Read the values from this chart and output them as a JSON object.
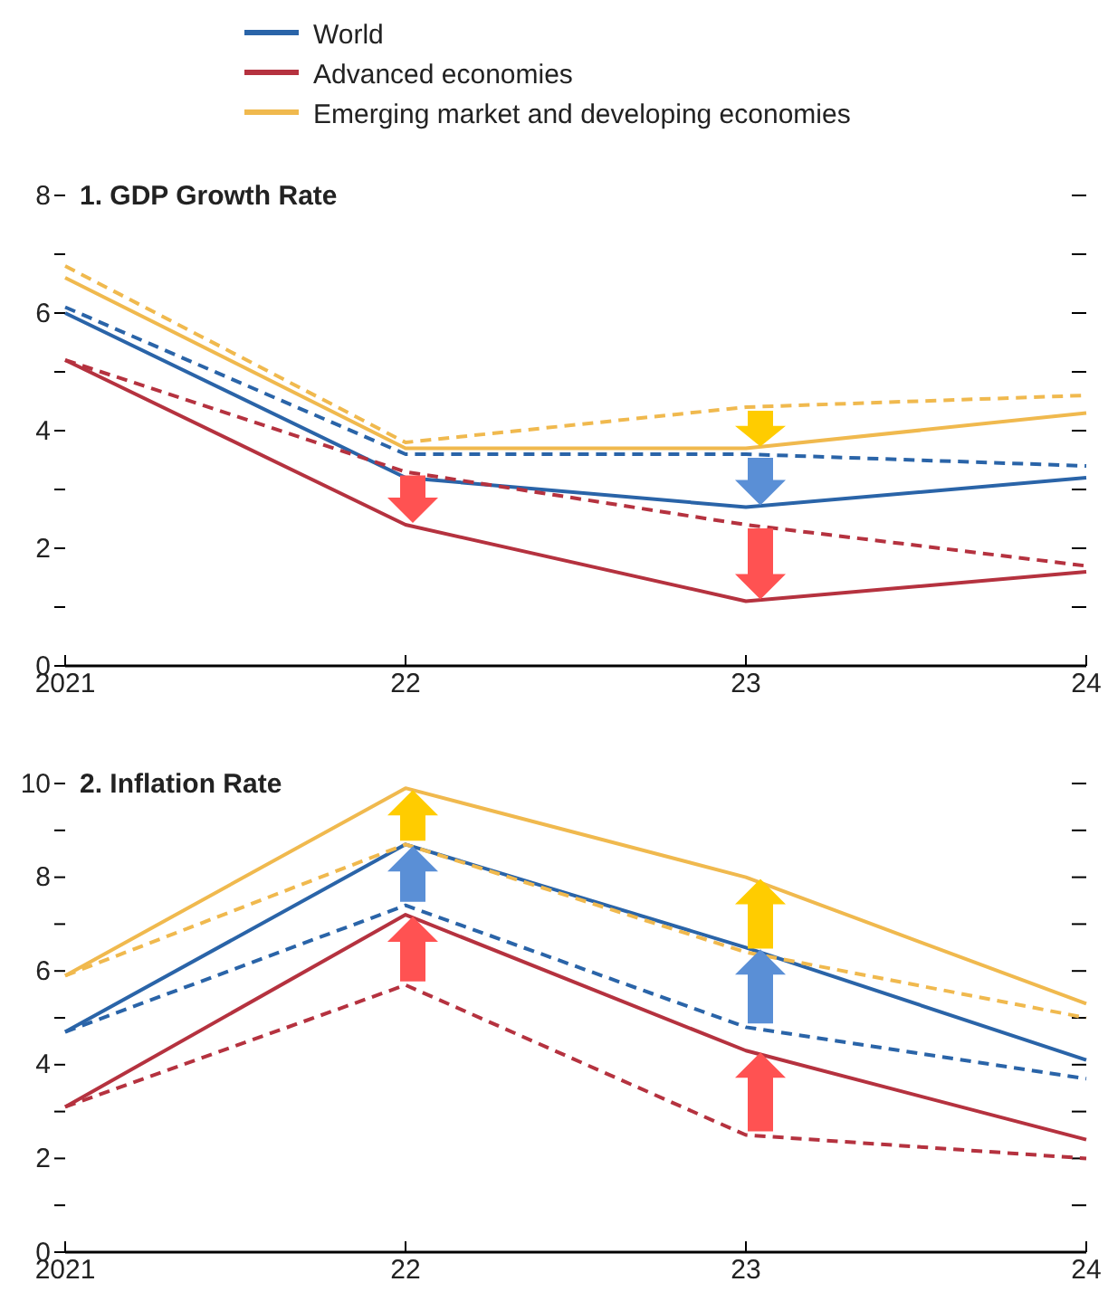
{
  "chart_data": [
    {
      "type": "line",
      "title": "1. GDP Growth Rate",
      "categories": [
        "2021",
        "22",
        "23",
        "24"
      ],
      "ylim": [
        0,
        8
      ],
      "yticks": [
        0,
        {
          "value": 1,
          "label": null
        },
        2,
        {
          "value": 3,
          "label": null
        },
        4,
        {
          "value": 5,
          "label": null
        },
        6,
        {
          "value": 7,
          "label": null
        },
        8
      ],
      "legend": "top",
      "grid": false,
      "series": [
        {
          "name": "World",
          "color": "#2a64a8",
          "line_style": "solid",
          "values": [
            6.0,
            3.2,
            2.7,
            3.2
          ]
        },
        {
          "name": "Advanced economies",
          "color": "#b5323f",
          "line_style": "solid",
          "values": [
            5.2,
            2.4,
            1.1,
            1.6
          ]
        },
        {
          "name": "Emerging market and developing economies",
          "color": "#f0b94e",
          "line_style": "solid",
          "values": [
            6.6,
            3.7,
            3.7,
            4.3
          ]
        },
        {
          "color": "#2a64a8",
          "line_style": "dashed",
          "values": [
            6.1,
            3.6,
            3.6,
            3.4
          ]
        },
        {
          "color": "#b5323f",
          "line_style": "dashed",
          "values": [
            5.2,
            3.3,
            2.4,
            1.7
          ]
        },
        {
          "color": "#f0b94e",
          "line_style": "dashed",
          "values": [
            6.8,
            3.8,
            4.4,
            4.6
          ]
        }
      ]
    },
    {
      "type": "line",
      "title": "2. Inflation Rate",
      "categories": [
        "2021",
        "22",
        "23",
        "24"
      ],
      "ylim": [
        0,
        10
      ],
      "yticks": [
        0,
        {
          "value": 1,
          "label": null
        },
        2,
        {
          "value": 3,
          "label": null
        },
        4,
        {
          "value": 5,
          "label": null
        },
        6,
        {
          "value": 7,
          "label": null
        },
        8,
        {
          "value": 9,
          "label": null
        },
        10
      ],
      "legend": false,
      "grid": false,
      "series": [
        {
          "color": "#2a64a8",
          "line_style": "solid",
          "values": [
            4.7,
            8.7,
            6.5,
            4.1
          ]
        },
        {
          "color": "#b5323f",
          "line_style": "solid",
          "values": [
            3.1,
            7.2,
            4.3,
            2.4
          ]
        },
        {
          "color": "#f0b94e",
          "line_style": "solid",
          "values": [
            5.9,
            9.9,
            8.0,
            5.3
          ]
        },
        {
          "color": "#2a64a8",
          "line_style": "dashed",
          "values": [
            4.7,
            7.4,
            4.8,
            3.7
          ]
        },
        {
          "color": "#b5323f",
          "line_style": "dashed",
          "values": [
            3.1,
            5.7,
            2.5,
            2.0
          ]
        },
        {
          "color": "#f0b94e",
          "line_style": "dashed",
          "values": [
            5.9,
            8.7,
            6.4,
            5.0
          ]
        }
      ]
    }
  ]
}
